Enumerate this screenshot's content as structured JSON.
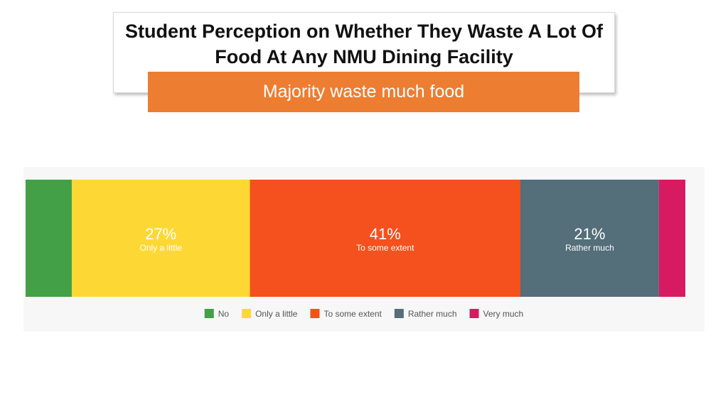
{
  "header": {
    "title": "Student Perception on Whether They Waste A Lot Of Food At Any NMU Dining Facility",
    "subtitle": "Majority waste much food"
  },
  "chart_data": {
    "type": "bar",
    "orientation": "horizontal-stacked-100",
    "categories": [
      "No",
      "Only a little",
      "To some extent",
      "Rather much",
      "Very much"
    ],
    "values": [
      7,
      27,
      41,
      21,
      4
    ],
    "unit": "%",
    "colors": [
      "#43a047",
      "#fdd835",
      "#f4511e",
      "#546e7a",
      "#d81b60"
    ],
    "data_labels": [
      {
        "index": 1,
        "value": "27%",
        "label": "Only a little"
      },
      {
        "index": 2,
        "value": "41%",
        "label": "To some extent"
      },
      {
        "index": 3,
        "value": "21%",
        "label": "Rather much"
      }
    ],
    "legend": [
      "No",
      "Only a little",
      "To some extent",
      "Rather much",
      "Very much"
    ],
    "legend_position": "bottom"
  }
}
